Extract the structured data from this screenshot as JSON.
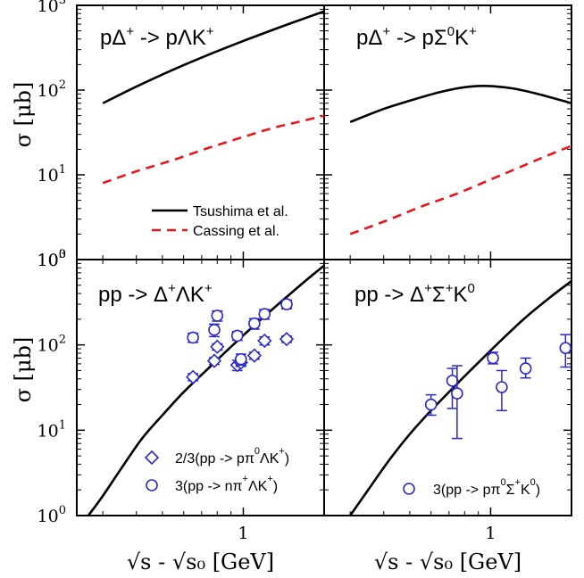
{
  "chart_data": {
    "type": "line",
    "x_scale": "log",
    "y_scale": "log",
    "xlabel": "√s - √s₀ [GeV]",
    "ylabel": "σ [μb]",
    "x_ticks": [
      "1",
      "1"
    ],
    "y_ticks": [
      {
        "base": "10",
        "exp": "0"
      },
      {
        "base": "10",
        "exp": "1"
      },
      {
        "base": "10",
        "exp": "2"
      },
      {
        "base": "10",
        "exp": "3"
      }
    ],
    "colors": {
      "black": "#000000",
      "red": "#e8161b",
      "blue": "#2a2acb"
    },
    "panels": [
      {
        "id": "top-left",
        "title": "pΔ⁺ -> pΛK⁺",
        "xlim": [
          0.24,
          2.0
        ],
        "ylim": [
          1,
          1000
        ],
        "series": [
          {
            "name": "Tsushima et al.",
            "style": "solid",
            "color": "#000000",
            "x": [
              0.3,
              0.4,
              0.55,
              0.75,
              1.0,
              1.3,
              1.6,
              2.0
            ],
            "y": [
              70,
              110,
              175,
              265,
              380,
              520,
              660,
              850
            ]
          },
          {
            "name": "Cassing et al.",
            "style": "dashed",
            "color": "#e8161b",
            "x": [
              0.3,
              0.4,
              0.55,
              0.75,
              1.0,
              1.3,
              1.6,
              2.0
            ],
            "y": [
              8,
              11,
              15,
              21,
              28,
              36,
              42,
              50
            ]
          }
        ],
        "legend": {
          "placement": "bottom-right",
          "entries": [
            "Tsushima et al.",
            "Cassing et al."
          ]
        }
      },
      {
        "id": "top-right",
        "title": "pΔ⁺ -> pΣ⁰K⁺",
        "xlim": [
          0.24,
          2.0
        ],
        "ylim": [
          1,
          1000
        ],
        "series": [
          {
            "name": "",
            "style": "solid",
            "color": "#000000",
            "x": [
              0.3,
              0.4,
              0.5,
              0.65,
              0.8,
              0.95,
              1.2,
              1.5,
              2.0
            ],
            "y": [
              42,
              60,
              75,
              95,
              108,
              112,
              105,
              90,
              70
            ]
          },
          {
            "name": "",
            "style": "dashed",
            "color": "#e8161b",
            "x": [
              0.3,
              0.4,
              0.55,
              0.75,
              1.0,
              1.3,
              1.6,
              2.0
            ],
            "y": [
              2.0,
              2.8,
              4.2,
              6.0,
              8.8,
              12.5,
              16.5,
              22
            ]
          }
        ]
      },
      {
        "id": "bottom-left",
        "title": "pp -> Δ⁺ΛK⁺",
        "xlim": [
          0.24,
          2.0
        ],
        "ylim": [
          1,
          1000
        ],
        "series": [
          {
            "name": "",
            "style": "solid",
            "color": "#000000",
            "x": [
              0.265,
              0.3,
              0.35,
              0.42,
              0.5,
              0.6,
              0.75,
              0.9,
              1.1,
              1.35,
              1.7,
              2.0
            ],
            "y": [
              1.0,
              1.7,
              3.5,
              8,
              15,
              28,
              55,
              95,
              170,
              300,
              560,
              850
            ]
          },
          {
            "name": "2/3(pp -> pπ⁰ΛK⁺)",
            "style": "marker",
            "marker": "diamond",
            "color": "#2a2acb",
            "x": [
              0.65,
              0.78,
              0.8,
              0.95,
              0.98,
              1.1,
              1.2,
              1.45
            ],
            "y": [
              42,
              65,
              95,
              58,
              62,
              75,
              112,
              117
            ],
            "err": [
              4,
              6,
              8,
              8,
              6,
              7,
              12,
              10
            ]
          },
          {
            "name": "3(pp -> nπ⁺ΛK⁺)",
            "style": "marker",
            "marker": "circle",
            "color": "#2a2acb",
            "x": [
              0.65,
              0.78,
              0.8,
              0.95,
              0.98,
              1.1,
              1.2,
              1.45
            ],
            "y": [
              122,
              150,
              220,
              128,
              68,
              178,
              230,
              300
            ],
            "err": [
              15,
              25,
              30,
              15,
              10,
              25,
              30,
              35
            ]
          }
        ],
        "legend": {
          "placement": "bottom-right",
          "entries": [
            "2/3(pp -> pπ⁰ΛK⁺)",
            "3(pp -> nπ⁺ΛK⁺)"
          ]
        }
      },
      {
        "id": "bottom-right",
        "title": "pp -> Δ⁺Σ⁺K⁰",
        "xlim": [
          0.24,
          2.0
        ],
        "ylim": [
          1,
          1000
        ],
        "series": [
          {
            "name": "",
            "style": "solid",
            "color": "#000000",
            "x": [
              0.3,
              0.35,
              0.42,
              0.5,
              0.6,
              0.75,
              0.9,
              1.1,
              1.35,
              1.7,
              2.0
            ],
            "y": [
              1.0,
              2.0,
              4.5,
              9,
              17,
              35,
              62,
              115,
              210,
              380,
              560
            ]
          },
          {
            "name": "3(pp -> pπ⁰Σ⁺K⁰)",
            "style": "marker",
            "marker": "circle",
            "color": "#2a2acb",
            "x": [
              0.6,
              0.72,
              0.75,
              1.02,
              1.1,
              1.35,
              1.9
            ],
            "y": [
              20,
              38,
              27,
              70,
              32,
              53,
              92
            ],
            "err_lo": [
              5,
              20,
              19,
              10,
              15,
              12,
              37
            ],
            "err_hi": [
              6,
              15,
              30,
              12,
              18,
              17,
              40
            ]
          }
        ],
        "legend": {
          "placement": "bottom-right",
          "entries": [
            "3(pp -> pπ⁰Σ⁺K⁰)"
          ]
        }
      }
    ]
  }
}
